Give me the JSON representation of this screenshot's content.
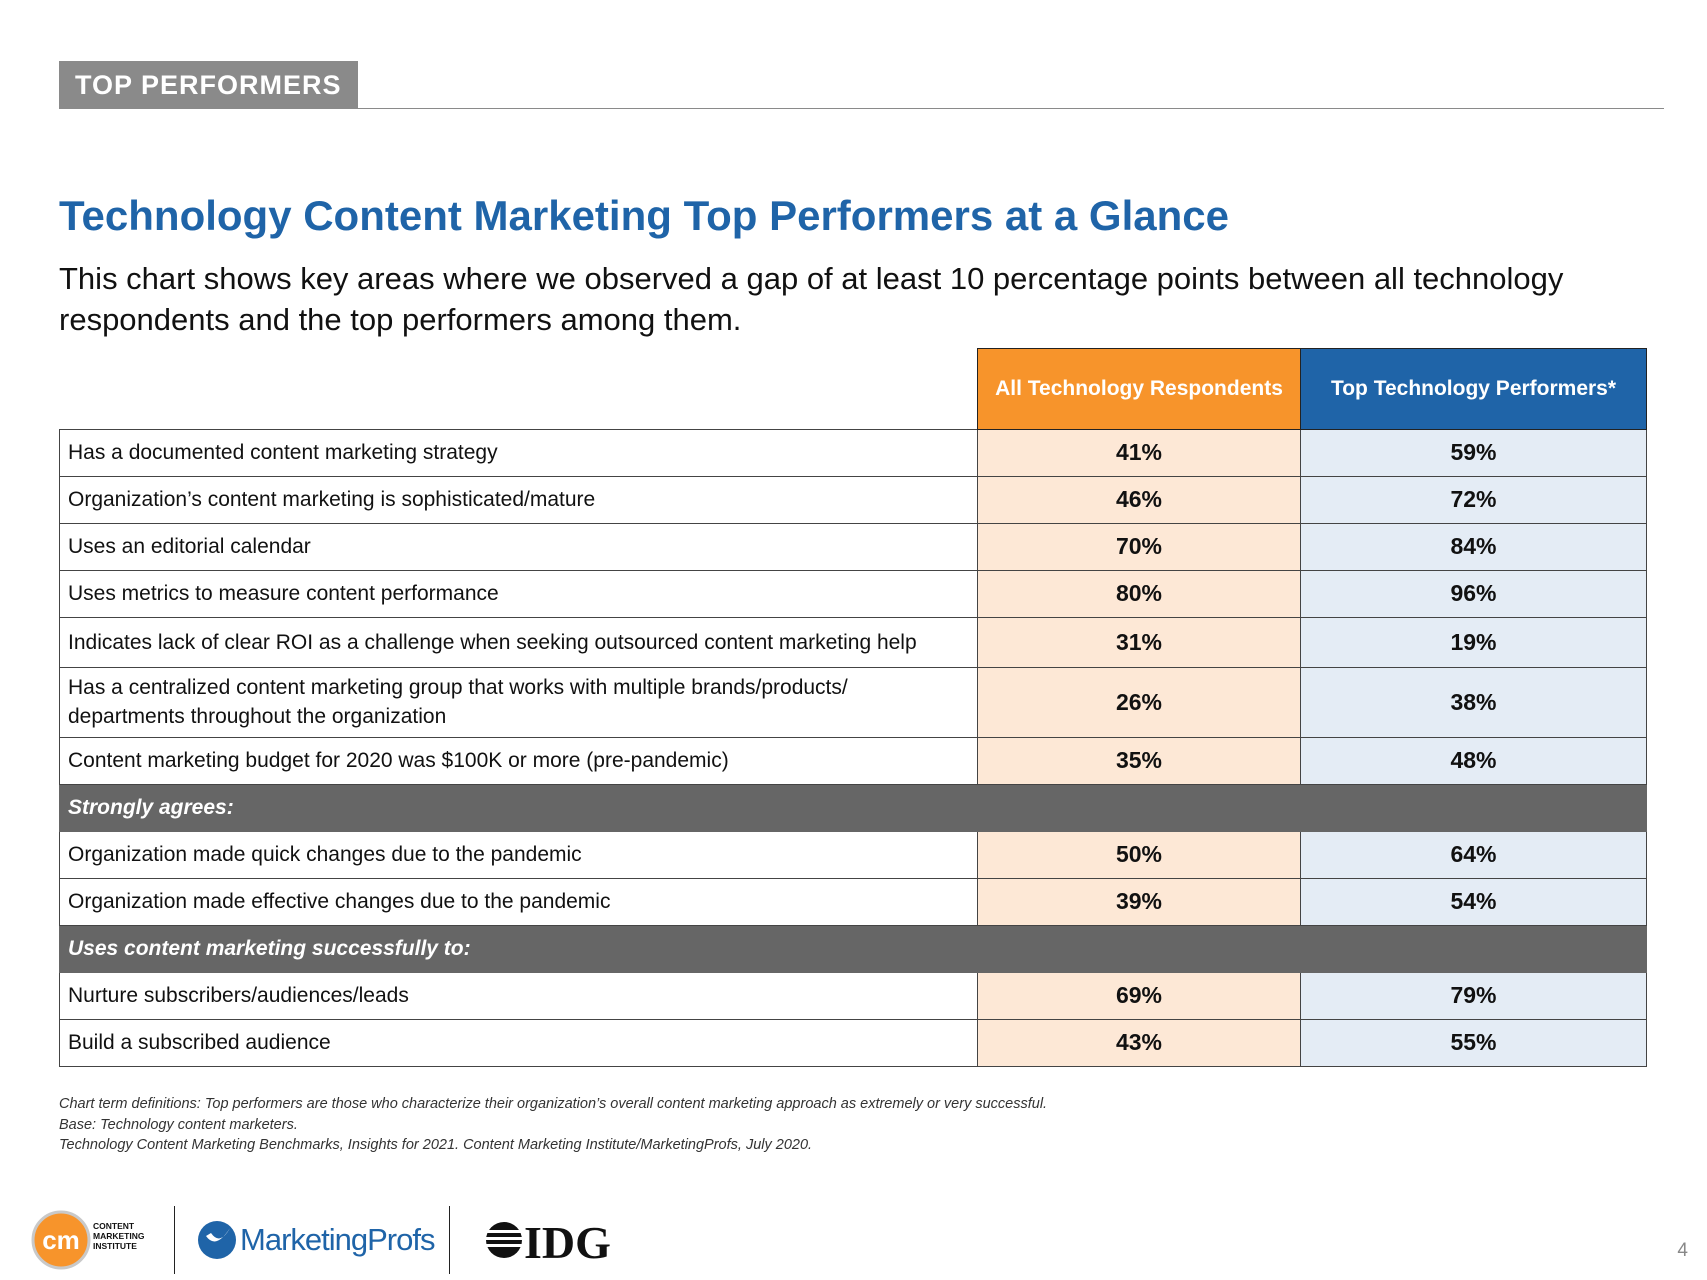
{
  "header": {
    "section": "TOP PERFORMERS"
  },
  "title": "Technology Content Marketing Top Performers at a Glance",
  "subtitle": "This chart shows key areas where we observed a gap of at least 10 percentage points between all technology respondents and the top performers among them.",
  "table": {
    "col_all": "All Technology Respondents",
    "col_top": "Top Technology Performers*",
    "rows_a": [
      {
        "label": "Has a documented content marketing strategy",
        "all": "41%",
        "top": "59%"
      },
      {
        "label": "Organization’s content marketing is sophisticated/mature",
        "all": "46%",
        "top": "72%"
      },
      {
        "label": "Uses an editorial calendar",
        "all": "70%",
        "top": "84%"
      },
      {
        "label": "Uses metrics to measure content performance",
        "all": "80%",
        "top": "96%"
      },
      {
        "label": "Indicates lack of clear ROI as a challenge when seeking outsourced content marketing help",
        "all": "31%",
        "top": "19%"
      },
      {
        "label": "Has a centralized content marketing group that works with multiple brands/products/ departments throughout the organization",
        "all": "26%",
        "top": "38%"
      },
      {
        "label": "Content marketing budget for 2020 was $100K or more (pre-pandemic)",
        "all": "35%",
        "top": "48%"
      }
    ],
    "group1": "Strongly agrees:",
    "rows_b": [
      {
        "label": "Organization made quick changes due to the pandemic",
        "all": "50%",
        "top": "64%"
      },
      {
        "label": "Organization made effective changes due to the pandemic",
        "all": "39%",
        "top": "54%"
      }
    ],
    "group2": "Uses content marketing successfully to:",
    "rows_c": [
      {
        "label": "Nurture subscribers/audiences/leads",
        "all": "69%",
        "top": "79%"
      },
      {
        "label": "Build a subscribed audience",
        "all": "43%",
        "top": "55%"
      }
    ]
  },
  "notes": [
    "Chart term definitions: Top performers are those who characterize their organization’s overall content marketing approach as extremely or very successful.",
    "Base: Technology content marketers.",
    "Technology Content Marketing Benchmarks, Insights for 2021. Content Marketing Institute/MarketingProfs, July 2020."
  ],
  "footer": {
    "cmi_logo": "cm",
    "cmi_text": "CONTENT MARKETING INSTITUTE",
    "mp_logo": "MarketingProfs",
    "idg_logo": "IDG",
    "page": "4"
  }
}
